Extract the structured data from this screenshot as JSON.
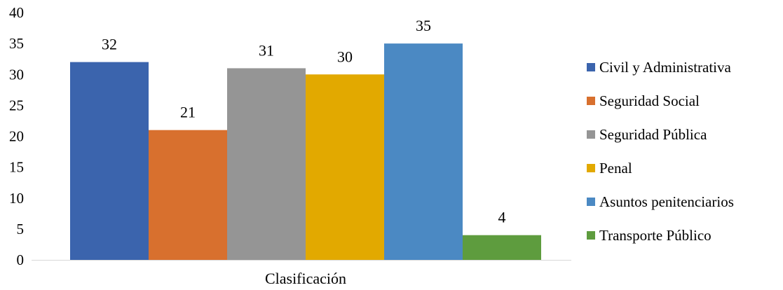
{
  "chart_data": {
    "type": "bar",
    "categories": [
      "Clasificación"
    ],
    "series": [
      {
        "name": "Civil y Administrativa",
        "values": [
          32
        ],
        "color": "#3B64AD"
      },
      {
        "name": "Seguridad Social",
        "values": [
          21
        ],
        "color": "#D8702E"
      },
      {
        "name": "Seguridad Pública",
        "values": [
          31
        ],
        "color": "#959595"
      },
      {
        "name": "Penal",
        "values": [
          30
        ],
        "color": "#E2A900"
      },
      {
        "name": "Asuntos penitenciarios",
        "values": [
          35
        ],
        "color": "#4B89C3"
      },
      {
        "name": "Transporte Público",
        "values": [
          4
        ],
        "color": "#5E9C3E"
      }
    ],
    "ylim": [
      0,
      40
    ],
    "yticks": [
      0,
      5,
      10,
      15,
      20,
      25,
      30,
      35,
      40
    ],
    "grid": false,
    "legend_position": "right",
    "data_labels": true
  }
}
